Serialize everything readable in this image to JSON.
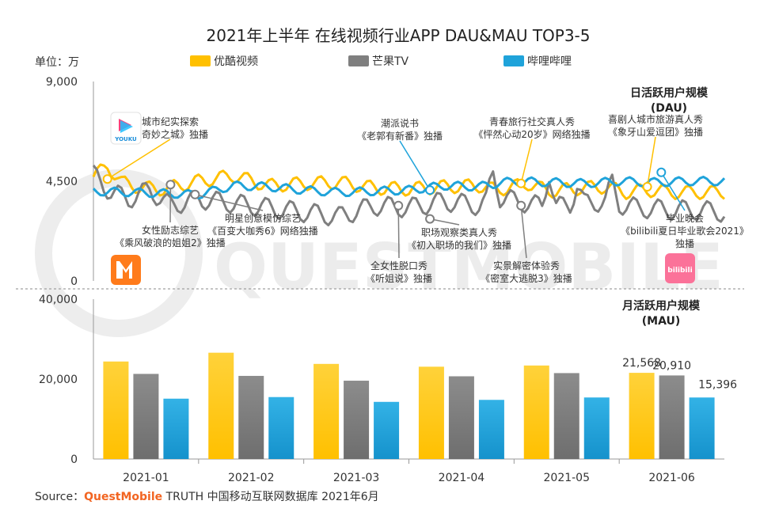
{
  "title": "2021年上半年 在线视频行业APP DAU&MAU TOP3-5",
  "unit_label": "单位：万",
  "legend": [
    {
      "name": "优酷视频",
      "color": "#FFC000"
    },
    {
      "name": "芒果TV",
      "color": "#7F7F7F"
    },
    {
      "name": "哔哩哔哩",
      "color": "#1FA3DA"
    }
  ],
  "source": {
    "prefix": "Source：",
    "brand": "QuestMobile",
    "suffix": " TRUTH 中国移动互联网数据库 2021年6月"
  },
  "watermark": "QUESTMOBILE",
  "app_icons": {
    "youku": {
      "label": "YOUKU",
      "icon": "youku-logo-icon"
    },
    "mgtv": {
      "icon": "mgtv-logo-icon"
    },
    "bilibili": {
      "label": "bilibili",
      "icon": "bilibili-logo-icon"
    }
  },
  "chart_data": [
    {
      "type": "line",
      "title": "日活跃用户规模",
      "subtitle": "(DAU)",
      "ylim": [
        0,
        9000
      ],
      "yticks": [
        "0",
        "4,500",
        "9,000"
      ],
      "ytick_values": [
        0,
        4500,
        9000
      ],
      "x_range": [
        0,
        180
      ],
      "series": [
        {
          "name": "优酷视频",
          "color": "#FFC000",
          "anchors": [
            [
              0,
              4700
            ],
            [
              4,
              5200
            ],
            [
              8,
              4450
            ],
            [
              14,
              4200
            ],
            [
              20,
              4150
            ],
            [
              30,
              4500
            ],
            [
              40,
              4750
            ],
            [
              50,
              4300
            ],
            [
              60,
              4400
            ],
            [
              70,
              4450
            ],
            [
              80,
              4200
            ],
            [
              90,
              4150
            ],
            [
              100,
              4250
            ],
            [
              110,
              4300
            ],
            [
              115,
              4100
            ],
            [
              124,
              4400
            ],
            [
              130,
              4050
            ],
            [
              140,
              4200
            ],
            [
              146,
              4250
            ],
            [
              152,
              4000
            ],
            [
              158,
              4100
            ],
            [
              166,
              4000
            ],
            [
              174,
              4000
            ],
            [
              180,
              4000
            ]
          ],
          "wiggle": 220,
          "period": 7
        },
        {
          "name": "芒果TV",
          "color": "#7F7F7F",
          "anchors": [
            [
              0,
              4800
            ],
            [
              5,
              4000
            ],
            [
              10,
              3700
            ],
            [
              16,
              4100
            ],
            [
              22,
              3400
            ],
            [
              30,
              3700
            ],
            [
              40,
              3500
            ],
            [
              50,
              3300
            ],
            [
              60,
              3100
            ],
            [
              70,
              2900
            ],
            [
              80,
              3400
            ],
            [
              90,
              3300
            ],
            [
              100,
              3600
            ],
            [
              110,
              3400
            ],
            [
              115,
              3800
            ],
            [
              124,
              3500
            ],
            [
              130,
              3300
            ],
            [
              140,
              3500
            ],
            [
              146,
              3600
            ],
            [
              155,
              3300
            ],
            [
              165,
              3200
            ],
            [
              172,
              3200
            ],
            [
              180,
              3100
            ]
          ],
          "wiggle": 320,
          "period": 7,
          "spikes": [
            [
              114,
              1200
            ],
            [
              130,
              1600
            ],
            [
              138,
              900
            ],
            [
              148,
              900
            ]
          ]
        },
        {
          "name": "哔哩哔哩",
          "color": "#1FA3DA",
          "anchors": [
            [
              0,
              4050
            ],
            [
              10,
              4000
            ],
            [
              20,
              3950
            ],
            [
              30,
              3900
            ],
            [
              40,
              4300
            ],
            [
              50,
              4250
            ],
            [
              60,
              4100
            ],
            [
              70,
              4000
            ],
            [
              80,
              4050
            ],
            [
              90,
              4100
            ],
            [
              100,
              4300
            ],
            [
              110,
              4250
            ],
            [
              115,
              4400
            ],
            [
              120,
              4500
            ],
            [
              130,
              4450
            ],
            [
              140,
              4400
            ],
            [
              150,
              4500
            ],
            [
              160,
              4450
            ],
            [
              170,
              4500
            ],
            [
              180,
              4500
            ]
          ],
          "wiggle": 140,
          "period": 7
        }
      ],
      "annotations": [
        {
          "line1": "城市纪实探索",
          "line2": "《奇妙之城》独播",
          "x": 4,
          "y": 4600,
          "series": "优酷视频",
          "dot_color": "#FFC000",
          "label_pos": "above"
        },
        {
          "line1": "女性励志综艺",
          "line2": "《乘风破浪的姐姐2》独播",
          "x": 22,
          "y": 4350,
          "series": "芒果TV",
          "dot_color": "#7F7F7F",
          "label_pos": "below"
        },
        {
          "line1": "明星创意模仿综艺",
          "line2": "《百变大咖秀6》网络独播",
          "x": 29,
          "y": 3900,
          "series": "芒果TV",
          "dot_color": "#7F7F7F",
          "label_pos": "below"
        },
        {
          "line1": "潮派说书",
          "line2": "《老郭有新番》独播",
          "x": 96,
          "y": 4100,
          "series": "哔哩哔哩",
          "dot_color": "#1FA3DA",
          "label_pos": "above"
        },
        {
          "line1": "全女性脱口秀",
          "line2": "《听姐说》独播",
          "x": 87,
          "y": 3400,
          "series": "芒果TV",
          "dot_color": "#7F7F7F",
          "label_pos": "below"
        },
        {
          "line1": "职场观察类真人秀",
          "line2": "《初入职场的我们》独播",
          "x": 96,
          "y": 2800,
          "series": "芒果TV",
          "dot_color": "#7F7F7F",
          "label_pos": "below"
        },
        {
          "line1": "青春旅行社交真人秀",
          "line2": "《怦然心动20岁》网络独播",
          "x": 122,
          "y": 4400,
          "series": "优酷视频",
          "dot_color": "#FFC000",
          "label_pos": "above"
        },
        {
          "line1": "实景解密体验秀",
          "line2": "《密室大逃脱3》独播",
          "x": 122,
          "y": 3400,
          "series": "芒果TV",
          "dot_color": "#7F7F7F",
          "label_pos": "below"
        },
        {
          "line1": "喜剧人城市旅游真人秀",
          "line2": "《象牙山爱逗团》独播",
          "x": 158,
          "y": 4250,
          "series": "优酷视频",
          "dot_color": "#FFC000",
          "label_pos": "above"
        },
        {
          "line1": "毕业晚会",
          "line2": "《bilibili夏日毕业歌会2021》",
          "line3": "独播",
          "x": 162,
          "y": 4900,
          "series": "哔哩哔哩",
          "dot_color": "#1FA3DA",
          "label_pos": "below"
        }
      ]
    },
    {
      "type": "bar",
      "title": "月活跃用户规模",
      "subtitle": "(MAU)",
      "ylim": [
        0,
        40000
      ],
      "yticks": [
        "0",
        "20,000",
        "40,000"
      ],
      "ytick_values": [
        0,
        20000,
        40000
      ],
      "categories": [
        "2021-01",
        "2021-02",
        "2021-03",
        "2021-04",
        "2021-05",
        "2021-06"
      ],
      "series": [
        {
          "name": "优酷视频",
          "color": "#FFC000",
          "values": [
            24400,
            26600,
            23800,
            23100,
            23400,
            21568
          ]
        },
        {
          "name": "芒果TV",
          "color": "#7F7F7F",
          "values": [
            21300,
            20800,
            19600,
            20700,
            21500,
            20910
          ]
        },
        {
          "name": "哔哩哔哩",
          "color": "#1FA3DA",
          "values": [
            15100,
            15500,
            14300,
            14800,
            15400,
            15396
          ]
        }
      ],
      "data_labels": [
        {
          "category": "2021-06",
          "series": "优酷视频",
          "text": "21,568"
        },
        {
          "category": "2021-06",
          "series": "芒果TV",
          "text": "20,910"
        },
        {
          "category": "2021-06",
          "series": "哔哩哔哩",
          "text": "15,396"
        }
      ]
    }
  ]
}
